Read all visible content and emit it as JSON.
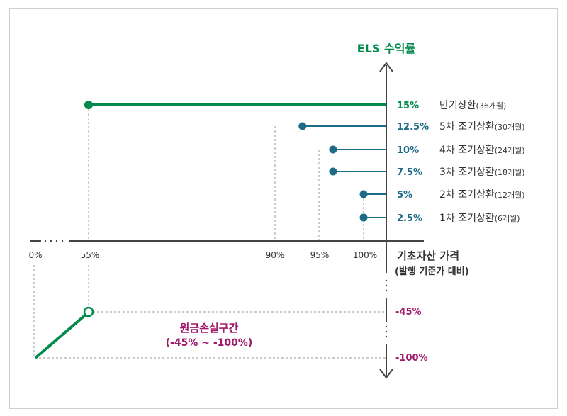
{
  "y_axis_title": "ELS 수익률",
  "x_axis_title": "기초자산 가격",
  "x_axis_subtitle": "(발행 기준가 대비)",
  "colors": {
    "green": "#008a4b",
    "blue": "#1d6b86",
    "magenta": "#a0196b",
    "axis": "#444444",
    "guide": "#999999"
  },
  "x_ticks": {
    "t0": "0%",
    "t55": "55%",
    "t90": "90%",
    "t95": "95%",
    "t100": "100%"
  },
  "redemptions": [
    {
      "barrier_pct": 55,
      "return_pct": 15,
      "value_label": "15%",
      "event": "만기상환",
      "period": "(36개월)"
    },
    {
      "barrier_pct": 90,
      "return_pct": 12.5,
      "value_label": "12.5%",
      "event": "5차 조기상환",
      "period": "(30개월)"
    },
    {
      "barrier_pct": 95,
      "return_pct": 10,
      "value_label": "10%",
      "event": "4차 조기상환",
      "period": "(24개월)"
    },
    {
      "barrier_pct": 95,
      "return_pct": 7.5,
      "value_label": "7.5%",
      "event": "3차 조기상환",
      "period": "(18개월)"
    },
    {
      "barrier_pct": 100,
      "return_pct": 5,
      "value_label": "5%",
      "event": "2차 조기상환",
      "period": "(12개월)"
    },
    {
      "barrier_pct": 100,
      "return_pct": 2.5,
      "value_label": "2.5%",
      "event": "1차 조기상환",
      "period": "(6개월)"
    }
  ],
  "loss": {
    "zone_title": "원금손실구간",
    "zone_range": "(-45% ~ -100%)",
    "label_upper": "-45%",
    "label_lower": "-100%",
    "upper": {
      "price_pct": 55,
      "return_pct": -45
    },
    "lower": {
      "price_pct": 0,
      "return_pct": -100
    }
  }
}
